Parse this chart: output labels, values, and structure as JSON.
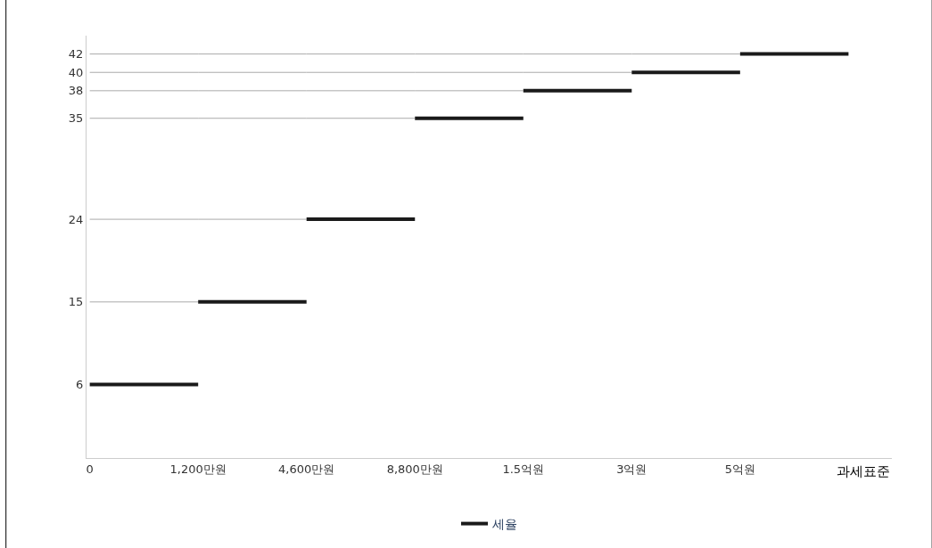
{
  "chart_data": {
    "type": "line",
    "xlabel": "과세표준",
    "categories": [
      "0",
      "1,200만원",
      "4,600만원",
      "8,800만원",
      "1.5억원",
      "3억원",
      "5억원",
      null
    ],
    "series": [
      {
        "color": "#aaaaaa",
        "values": [
          15,
          15,
          null,
          null,
          null,
          null,
          null,
          null
        ]
      },
      {
        "color": "#aaaaaa",
        "values": [
          24,
          24,
          24,
          null,
          null,
          null,
          null,
          null
        ]
      },
      {
        "color": "#aaaaaa",
        "values": [
          35,
          35,
          35,
          35,
          null,
          null,
          null,
          null
        ]
      },
      {
        "color": "#aaaaaa",
        "values": [
          38,
          38,
          38,
          38,
          38,
          null,
          null,
          null
        ]
      },
      {
        "color": "#aaaaaa",
        "values": [
          40,
          40,
          40,
          40,
          40,
          40,
          null,
          null
        ]
      },
      {
        "color": "#aaaaaa",
        "values": [
          42,
          42,
          42,
          42,
          42,
          42,
          42,
          null
        ]
      },
      {
        "name": "세율",
        "color": "#1a1a1a",
        "values": [
          6,
          6,
          null,
          null,
          null,
          null,
          null,
          null
        ]
      },
      {
        "color": "#1a1a1a",
        "values": [
          null,
          15,
          15,
          null,
          null,
          null,
          null,
          null
        ]
      },
      {
        "color": "#1a1a1a",
        "values": [
          null,
          null,
          24,
          24,
          null,
          null,
          null,
          null
        ]
      },
      {
        "color": "#1a1a1a",
        "values": [
          null,
          null,
          null,
          35,
          35,
          null,
          null,
          null
        ]
      },
      {
        "color": "#1a1a1a",
        "values": [
          null,
          null,
          null,
          null,
          38,
          38,
          null,
          null
        ]
      },
      {
        "color": "#1a1a1a",
        "values": [
          null,
          null,
          null,
          null,
          null,
          40,
          40,
          null
        ]
      },
      {
        "color": "#1a1a1a",
        "values": [
          null,
          null,
          null,
          null,
          null,
          null,
          42,
          42
        ]
      }
    ],
    "ylim": [
      -2,
      44
    ],
    "yticks": [
      6,
      15,
      24,
      35,
      38,
      40,
      42
    ],
    "legend": "bottom"
  }
}
